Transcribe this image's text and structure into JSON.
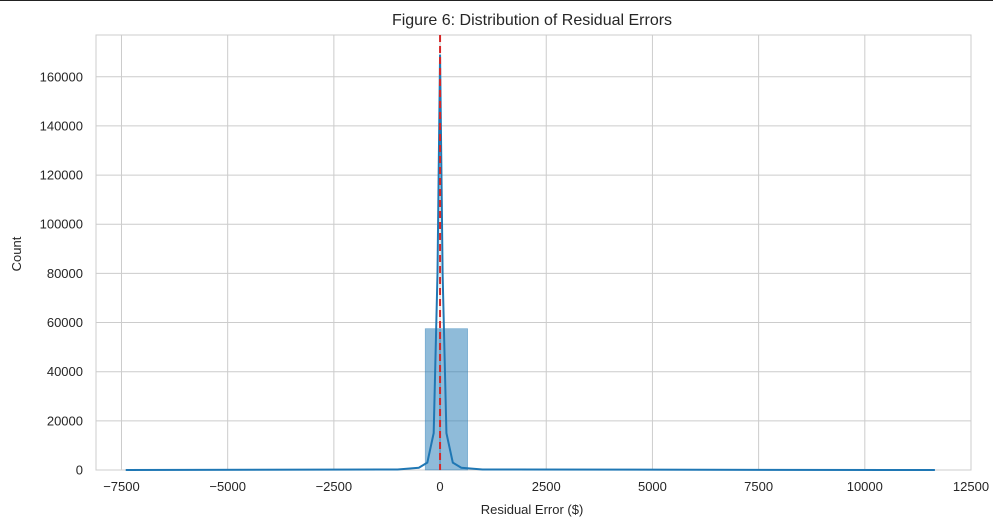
{
  "chart_data": {
    "type": "bar",
    "title": "Figure 6: Distribution of Residual Errors",
    "xlabel": "Residual Error ($)",
    "ylabel": "Count",
    "xlim": [
      -8100,
      12500
    ],
    "ylim": [
      0,
      177000
    ],
    "x_ticks": [
      -7500,
      -5000,
      -2500,
      0,
      2500,
      5000,
      7500,
      10000,
      12500
    ],
    "x_tick_labels": [
      "−7500",
      "−5000",
      "−2500",
      "0",
      "2500",
      "5000",
      "7500",
      "10000",
      "12500"
    ],
    "y_ticks": [
      0,
      20000,
      40000,
      60000,
      80000,
      100000,
      120000,
      140000,
      160000
    ],
    "y_tick_labels": [
      "0",
      "20000",
      "40000",
      "60000",
      "80000",
      "100000",
      "120000",
      "140000",
      "160000"
    ],
    "grid": true,
    "histogram": {
      "bin_edges": [
        -7400,
        -6750,
        -6100,
        -5450,
        -4800,
        -4150,
        -3500,
        -2850,
        -2200,
        -1550,
        -900,
        -350,
        0,
        650,
        1300,
        1950,
        2600,
        3250,
        3900,
        4550,
        5200,
        5850,
        6500,
        7150,
        7800,
        8450,
        9100,
        9750,
        10400,
        11050,
        11700
      ],
      "counts": [
        0,
        0,
        0,
        0,
        0,
        0,
        0,
        0,
        0,
        0,
        0,
        57500,
        57500,
        0,
        0,
        0,
        0,
        0,
        0,
        0,
        0,
        0,
        0,
        0,
        0,
        0,
        0,
        0,
        0,
        0
      ]
    },
    "kde": {
      "x": [
        -7400,
        -1000,
        -500,
        -300,
        -150,
        -60,
        0,
        60,
        150,
        300,
        500,
        1000,
        11650
      ],
      "y": [
        0,
        200,
        900,
        3000,
        15000,
        80000,
        169000,
        80000,
        15000,
        3000,
        900,
        200,
        0
      ]
    },
    "reference_line": {
      "x": 0,
      "style": "dashed",
      "color": "#d62728"
    },
    "colors": {
      "bar": "#1f77b4",
      "kde": "#1f77b4",
      "grid": "#cccccc"
    }
  }
}
